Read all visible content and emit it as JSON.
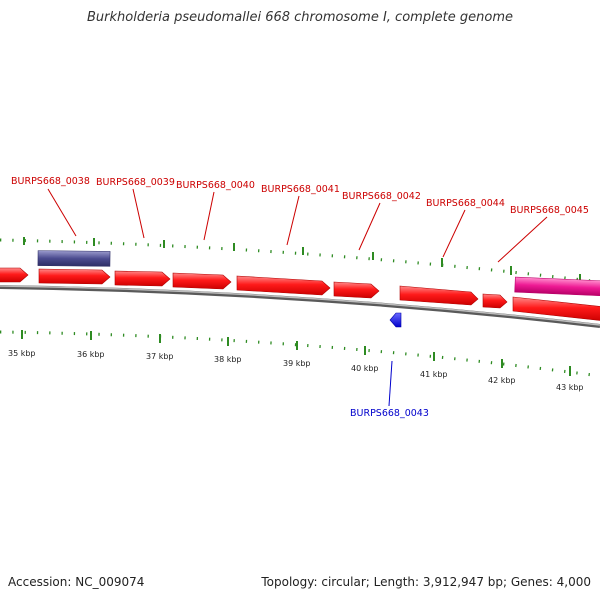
{
  "title": "Burkholderia pseudomallei 668 chromosome I, complete genome",
  "footer": {
    "accession": "Accession: NC_009074",
    "summary": "Topology: circular; Length: 3,912,947 bp; Genes: 4,000"
  },
  "colors": {
    "forward_gene": "#ff0000",
    "reverse_gene": "#0000ff",
    "rna_gene": "#4b4b8f",
    "pseudo_gene": "#e6007e",
    "backbone": "#8c8c8c",
    "tick": "#2e8b22",
    "label_forward": "#cc0000",
    "label_reverse": "#0000cc"
  },
  "scale_labels": [
    "35 kbp",
    "36 kbp",
    "37 kbp",
    "38 kbp",
    "39 kbp",
    "40 kbp",
    "41 kbp",
    "42 kbp",
    "43 kbp"
  ],
  "gene_labels": {
    "top": [
      "BURPS668_0038",
      "BURPS668_0039",
      "BURPS668_0040",
      "BURPS668_0041",
      "BURPS668_0042",
      "BURPS668_0044",
      "BURPS668_0045"
    ],
    "bottom": [
      "BURPS668_0043"
    ]
  }
}
